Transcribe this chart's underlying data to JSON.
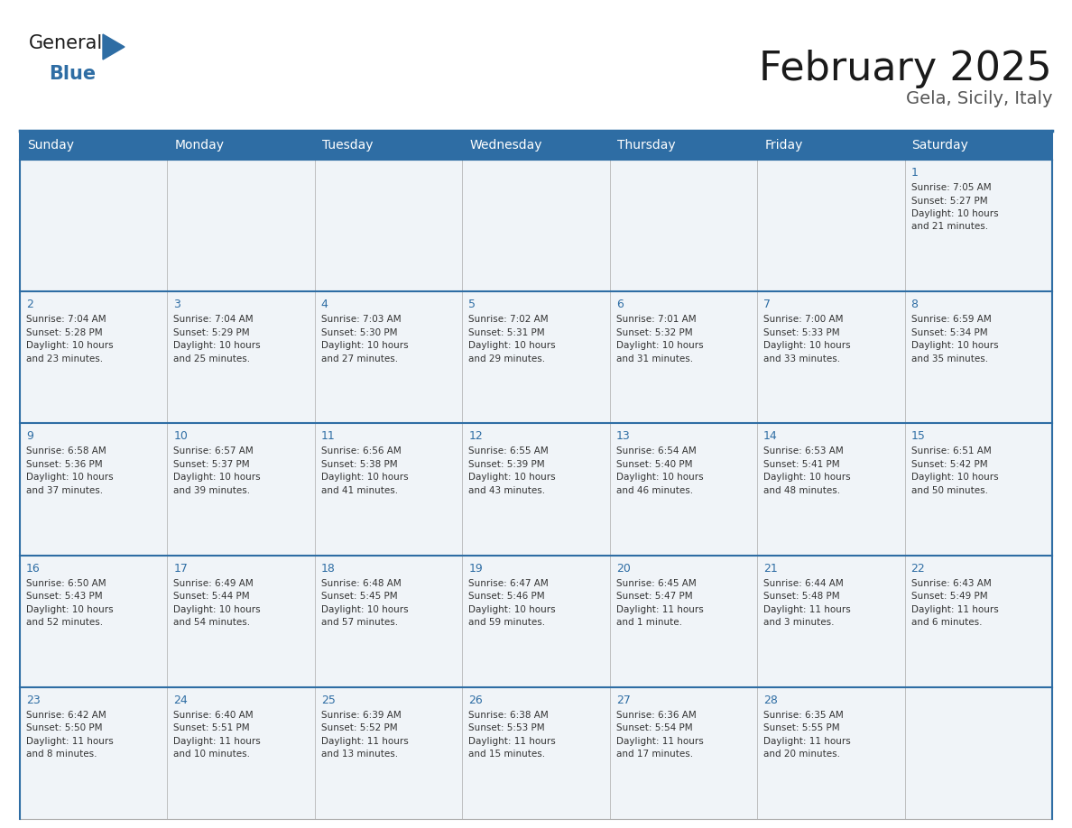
{
  "title": "February 2025",
  "subtitle": "Gela, Sicily, Italy",
  "header_bg": "#2E6DA4",
  "header_text_color": "#FFFFFF",
  "cell_bg": "#F0F4F8",
  "border_color": "#2E6DA4",
  "border_color_light": "#AAAAAA",
  "text_color": "#333333",
  "day_num_color": "#2E6DA4",
  "days_of_week": [
    "Sunday",
    "Monday",
    "Tuesday",
    "Wednesday",
    "Thursday",
    "Friday",
    "Saturday"
  ],
  "calendar": [
    [
      null,
      null,
      null,
      null,
      null,
      null,
      {
        "day": 1,
        "sunrise": "7:05 AM",
        "sunset": "5:27 PM",
        "daylight": "10 hours and 21 minutes."
      }
    ],
    [
      {
        "day": 2,
        "sunrise": "7:04 AM",
        "sunset": "5:28 PM",
        "daylight": "10 hours and 23 minutes."
      },
      {
        "day": 3,
        "sunrise": "7:04 AM",
        "sunset": "5:29 PM",
        "daylight": "10 hours and 25 minutes."
      },
      {
        "day": 4,
        "sunrise": "7:03 AM",
        "sunset": "5:30 PM",
        "daylight": "10 hours and 27 minutes."
      },
      {
        "day": 5,
        "sunrise": "7:02 AM",
        "sunset": "5:31 PM",
        "daylight": "10 hours and 29 minutes."
      },
      {
        "day": 6,
        "sunrise": "7:01 AM",
        "sunset": "5:32 PM",
        "daylight": "10 hours and 31 minutes."
      },
      {
        "day": 7,
        "sunrise": "7:00 AM",
        "sunset": "5:33 PM",
        "daylight": "10 hours and 33 minutes."
      },
      {
        "day": 8,
        "sunrise": "6:59 AM",
        "sunset": "5:34 PM",
        "daylight": "10 hours and 35 minutes."
      }
    ],
    [
      {
        "day": 9,
        "sunrise": "6:58 AM",
        "sunset": "5:36 PM",
        "daylight": "10 hours and 37 minutes."
      },
      {
        "day": 10,
        "sunrise": "6:57 AM",
        "sunset": "5:37 PM",
        "daylight": "10 hours and 39 minutes."
      },
      {
        "day": 11,
        "sunrise": "6:56 AM",
        "sunset": "5:38 PM",
        "daylight": "10 hours and 41 minutes."
      },
      {
        "day": 12,
        "sunrise": "6:55 AM",
        "sunset": "5:39 PM",
        "daylight": "10 hours and 43 minutes."
      },
      {
        "day": 13,
        "sunrise": "6:54 AM",
        "sunset": "5:40 PM",
        "daylight": "10 hours and 46 minutes."
      },
      {
        "day": 14,
        "sunrise": "6:53 AM",
        "sunset": "5:41 PM",
        "daylight": "10 hours and 48 minutes."
      },
      {
        "day": 15,
        "sunrise": "6:51 AM",
        "sunset": "5:42 PM",
        "daylight": "10 hours and 50 minutes."
      }
    ],
    [
      {
        "day": 16,
        "sunrise": "6:50 AM",
        "sunset": "5:43 PM",
        "daylight": "10 hours and 52 minutes."
      },
      {
        "day": 17,
        "sunrise": "6:49 AM",
        "sunset": "5:44 PM",
        "daylight": "10 hours and 54 minutes."
      },
      {
        "day": 18,
        "sunrise": "6:48 AM",
        "sunset": "5:45 PM",
        "daylight": "10 hours and 57 minutes."
      },
      {
        "day": 19,
        "sunrise": "6:47 AM",
        "sunset": "5:46 PM",
        "daylight": "10 hours and 59 minutes."
      },
      {
        "day": 20,
        "sunrise": "6:45 AM",
        "sunset": "5:47 PM",
        "daylight": "11 hours and 1 minute."
      },
      {
        "day": 21,
        "sunrise": "6:44 AM",
        "sunset": "5:48 PM",
        "daylight": "11 hours and 3 minutes."
      },
      {
        "day": 22,
        "sunrise": "6:43 AM",
        "sunset": "5:49 PM",
        "daylight": "11 hours and 6 minutes."
      }
    ],
    [
      {
        "day": 23,
        "sunrise": "6:42 AM",
        "sunset": "5:50 PM",
        "daylight": "11 hours and 8 minutes."
      },
      {
        "day": 24,
        "sunrise": "6:40 AM",
        "sunset": "5:51 PM",
        "daylight": "11 hours and 10 minutes."
      },
      {
        "day": 25,
        "sunrise": "6:39 AM",
        "sunset": "5:52 PM",
        "daylight": "11 hours and 13 minutes."
      },
      {
        "day": 26,
        "sunrise": "6:38 AM",
        "sunset": "5:53 PM",
        "daylight": "11 hours and 15 minutes."
      },
      {
        "day": 27,
        "sunrise": "6:36 AM",
        "sunset": "5:54 PM",
        "daylight": "11 hours and 17 minutes."
      },
      {
        "day": 28,
        "sunrise": "6:35 AM",
        "sunset": "5:55 PM",
        "daylight": "11 hours and 20 minutes."
      },
      null
    ]
  ],
  "logo_general_color": "#1a1a1a",
  "logo_blue_color": "#2E6DA4",
  "title_fontsize": 32,
  "subtitle_fontsize": 14,
  "dow_fontsize": 10,
  "day_num_fontsize": 9,
  "cell_text_fontsize": 7.5
}
